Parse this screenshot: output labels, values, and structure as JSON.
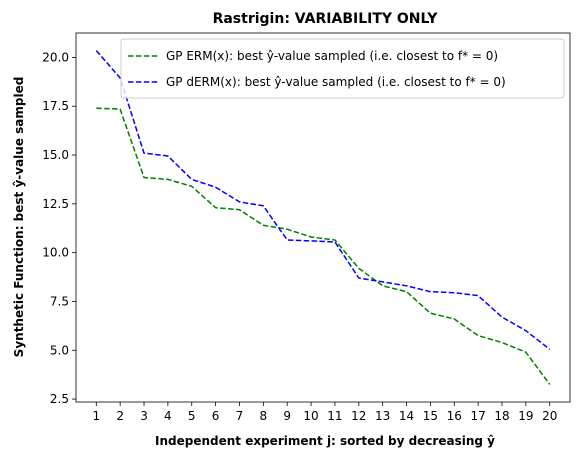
{
  "chart_data": {
    "type": "line",
    "title": "Rastrigin: VARIABILITY ONLY",
    "xlabel": "Independent experiment j: sorted by decreasing ŷ",
    "ylabel": "Synthetic Function: best ŷ-value sampled",
    "x": [
      1,
      2,
      3,
      4,
      5,
      6,
      7,
      8,
      9,
      10,
      11,
      12,
      13,
      14,
      15,
      16,
      17,
      18,
      19,
      20
    ],
    "xlim": [
      0.15,
      20.85
    ],
    "ylim": [
      2.35,
      21.25
    ],
    "yticks": [
      2.5,
      5.0,
      7.5,
      10.0,
      12.5,
      15.0,
      17.5,
      20.0
    ],
    "yticklabels": [
      "2.5",
      "5.0",
      "7.5",
      "10.0",
      "12.5",
      "15.0",
      "17.5",
      "20.0"
    ],
    "grid": false,
    "legend_position": "top-right",
    "series": [
      {
        "name": "GP ERM(x):   best ŷ-value sampled (i.e. closest to f* = 0)",
        "color": "#008000",
        "linestyle": "dashed",
        "values": [
          17.4,
          17.35,
          13.85,
          13.75,
          13.4,
          12.3,
          12.2,
          11.4,
          11.2,
          10.8,
          10.65,
          9.2,
          8.3,
          8.0,
          6.9,
          6.6,
          5.75,
          5.4,
          4.9,
          3.25
        ]
      },
      {
        "name": "GP dERM(x): best ŷ-value sampled (i.e. closest to f* = 0)",
        "color": "#0000ff",
        "linestyle": "dashed",
        "values": [
          20.35,
          18.95,
          15.1,
          14.95,
          13.75,
          13.35,
          12.6,
          12.4,
          10.65,
          10.6,
          10.55,
          8.7,
          8.5,
          8.3,
          8.0,
          7.95,
          7.8,
          6.7,
          6.0,
          5.05
        ]
      }
    ]
  }
}
